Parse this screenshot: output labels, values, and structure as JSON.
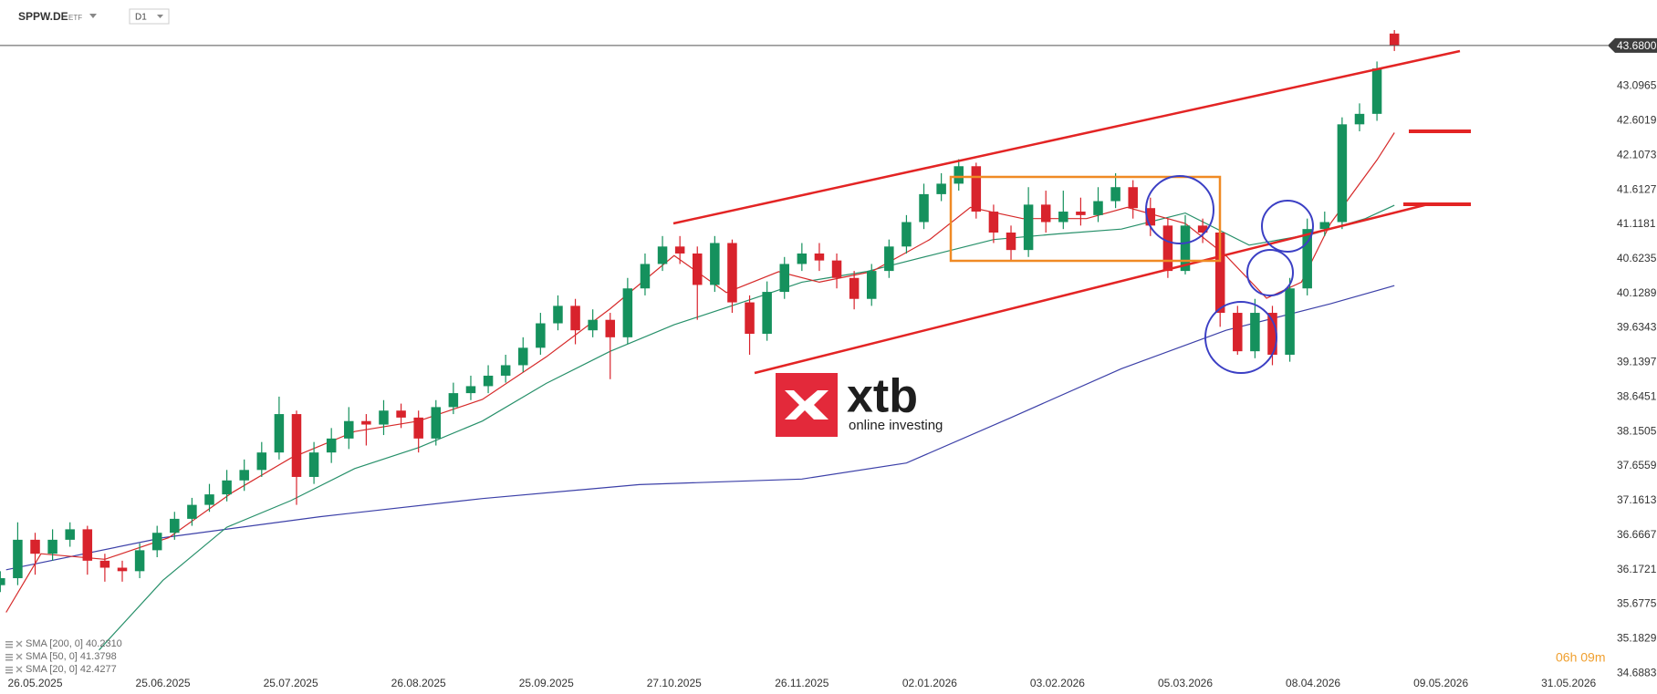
{
  "chart_data": {
    "type": "candlestick",
    "symbol": "SPPW.DE",
    "instrument_type": "ETF",
    "timeframe": "D1",
    "countdown": "06h 09m",
    "watermark": {
      "brand": "xtb",
      "tagline": "online investing"
    },
    "colors": {
      "up": "#15915d",
      "down": "#d8232c"
    },
    "x": [
      -6,
      -3,
      0,
      3,
      6,
      9,
      12,
      15,
      18,
      21,
      24,
      27,
      30,
      33,
      36,
      39,
      42,
      45,
      48,
      51,
      54,
      57,
      60,
      63,
      66,
      69,
      72,
      75,
      78,
      81,
      84,
      87,
      90,
      93,
      96,
      99,
      102,
      105,
      108,
      111,
      114,
      117,
      120,
      123,
      126,
      129,
      132,
      135,
      138,
      141,
      144,
      147,
      150,
      153,
      156,
      159,
      162,
      165,
      168,
      171,
      174,
      177,
      180,
      183,
      186,
      189,
      192,
      195,
      198,
      201,
      204,
      207,
      210,
      213,
      216,
      219,
      222,
      225,
      228,
      231,
      234
    ],
    "open": [
      35.95,
      36.05,
      36.6,
      36.4,
      36.6,
      36.75,
      36.3,
      36.2,
      36.15,
      36.45,
      36.7,
      36.9,
      37.1,
      37.25,
      37.45,
      37.6,
      37.85,
      38.4,
      37.5,
      37.85,
      38.05,
      38.3,
      38.25,
      38.45,
      38.35,
      38.05,
      38.5,
      38.7,
      38.8,
      38.95,
      39.1,
      39.35,
      39.7,
      39.95,
      39.6,
      39.75,
      39.5,
      40.2,
      40.55,
      40.8,
      40.7,
      40.25,
      40.85,
      40.0,
      39.55,
      40.15,
      40.55,
      40.7,
      40.6,
      40.35,
      40.05,
      40.45,
      40.8,
      41.15,
      41.55,
      41.7,
      41.95,
      41.3,
      41.0,
      40.75,
      41.4,
      41.15,
      41.3,
      41.25,
      41.45,
      41.65,
      41.35,
      41.1,
      40.45,
      41.1,
      41.0,
      39.85,
      39.3,
      39.85,
      39.25,
      40.2,
      41.05,
      41.15,
      42.55,
      42.7,
      43.85
    ],
    "high": [
      36.15,
      36.85,
      36.7,
      36.75,
      36.85,
      36.8,
      36.4,
      36.3,
      36.55,
      36.8,
      37.0,
      37.2,
      37.4,
      37.6,
      37.75,
      38.0,
      38.65,
      38.45,
      38.0,
      38.2,
      38.5,
      38.4,
      38.6,
      38.55,
      38.45,
      38.6,
      38.85,
      38.95,
      39.1,
      39.25,
      39.5,
      39.85,
      40.1,
      40.05,
      39.9,
      39.85,
      40.35,
      40.7,
      40.95,
      40.95,
      40.8,
      40.95,
      40.9,
      40.1,
      40.3,
      40.65,
      40.85,
      40.85,
      40.7,
      40.45,
      40.55,
      40.9,
      41.25,
      41.7,
      41.85,
      42.05,
      42.0,
      41.4,
      41.1,
      41.65,
      41.6,
      41.6,
      41.5,
      41.65,
      41.85,
      41.75,
      41.5,
      41.2,
      41.25,
      41.2,
      41.05,
      39.95,
      40.05,
      39.95,
      40.35,
      41.2,
      41.3,
      42.65,
      42.85,
      43.45,
      43.9
    ],
    "low": [
      35.85,
      35.95,
      36.1,
      36.3,
      36.5,
      36.1,
      36.0,
      36.0,
      36.05,
      36.35,
      36.6,
      36.8,
      37.0,
      37.15,
      37.3,
      37.5,
      37.75,
      37.1,
      37.4,
      37.7,
      37.9,
      37.95,
      38.1,
      38.2,
      37.85,
      37.95,
      38.4,
      38.6,
      38.7,
      38.85,
      39.0,
      39.25,
      39.6,
      39.4,
      39.5,
      38.9,
      39.4,
      40.1,
      40.45,
      40.55,
      39.75,
      40.15,
      39.85,
      39.25,
      39.45,
      40.05,
      40.45,
      40.45,
      40.2,
      39.9,
      39.95,
      40.35,
      40.7,
      41.05,
      41.45,
      41.6,
      41.2,
      40.85,
      40.6,
      40.65,
      41.0,
      41.05,
      41.1,
      41.15,
      41.35,
      41.2,
      40.95,
      40.35,
      40.4,
      40.85,
      39.65,
      39.25,
      39.2,
      39.1,
      39.15,
      40.1,
      40.95,
      41.05,
      42.45,
      42.6,
      43.6
    ],
    "close": [
      36.05,
      36.6,
      36.4,
      36.6,
      36.75,
      36.3,
      36.2,
      36.15,
      36.45,
      36.7,
      36.9,
      37.1,
      37.25,
      37.45,
      37.6,
      37.85,
      38.4,
      37.5,
      37.85,
      38.05,
      38.3,
      38.25,
      38.45,
      38.35,
      38.05,
      38.5,
      38.7,
      38.8,
      38.95,
      39.1,
      39.35,
      39.7,
      39.95,
      39.6,
      39.75,
      39.5,
      40.2,
      40.55,
      40.8,
      40.7,
      40.25,
      40.85,
      40.0,
      39.55,
      40.15,
      40.55,
      40.7,
      40.6,
      40.35,
      40.05,
      40.45,
      40.8,
      41.15,
      41.55,
      41.7,
      41.95,
      41.3,
      41.0,
      40.75,
      41.4,
      41.15,
      41.3,
      41.25,
      41.45,
      41.65,
      41.35,
      41.1,
      40.45,
      41.1,
      41.0,
      39.85,
      39.3,
      39.85,
      39.25,
      40.2,
      41.05,
      41.15,
      42.55,
      42.7,
      43.35,
      43.68
    ],
    "sma": [
      {
        "name": "SMA [200, 0] 40.2310",
        "color": "#3c40a8",
        "x": [
          -5,
          22,
          49,
          77,
          104,
          132,
          150,
          168,
          187,
          205,
          223,
          234
        ],
        "values": [
          36.17,
          36.63,
          36.93,
          37.19,
          37.39,
          37.47,
          37.7,
          38.35,
          39.05,
          39.6,
          39.98,
          40.24
        ]
      },
      {
        "name": "SMA [50, 0] 41.3798",
        "color": "#27906a",
        "x": [
          11,
          22,
          33,
          44,
          55,
          66,
          77,
          88,
          99,
          110,
          121,
          132,
          143,
          154,
          165,
          176,
          187,
          198,
          209,
          220,
          229,
          234
        ],
        "values": [
          35.02,
          36.02,
          36.78,
          37.16,
          37.62,
          37.92,
          38.3,
          38.84,
          39.3,
          39.68,
          39.98,
          40.29,
          40.44,
          40.67,
          40.9,
          40.98,
          41.05,
          41.28,
          40.82,
          40.98,
          41.2,
          41.39
        ]
      },
      {
        "name": "SMA [20, 0] 42.4277",
        "color": "#d62a2a",
        "x": [
          -5,
          1,
          12,
          23,
          34,
          44,
          55,
          66,
          77,
          88,
          99,
          110,
          119,
          128,
          135,
          144,
          154,
          161,
          170,
          181,
          188,
          198,
          205,
          212,
          218,
          223,
          231,
          234
        ],
        "values": [
          35.56,
          36.4,
          36.32,
          36.63,
          37.28,
          37.77,
          38.15,
          38.3,
          38.61,
          39.22,
          39.91,
          40.67,
          40.14,
          40.44,
          40.29,
          40.44,
          40.9,
          41.36,
          41.2,
          41.2,
          41.36,
          41.13,
          40.67,
          40.06,
          40.29,
          41.13,
          42.04,
          42.43
        ]
      }
    ],
    "last_price": {
      "value": 43.68,
      "label": "43.6800"
    },
    "xlim": [
      -6.05,
      270.1
    ],
    "xticks": [
      {
        "value": 0,
        "label": "26.05.2025"
      },
      {
        "value": 22,
        "label": "25.06.2025"
      },
      {
        "value": 44,
        "label": "25.07.2025"
      },
      {
        "value": 66,
        "label": "26.08.2025"
      },
      {
        "value": 88,
        "label": "25.09.2025"
      },
      {
        "value": 110,
        "label": "27.10.2025"
      },
      {
        "value": 132,
        "label": "26.11.2025"
      },
      {
        "value": 154,
        "label": "02.01.2026"
      },
      {
        "value": 176,
        "label": "03.02.2026"
      },
      {
        "value": 198,
        "label": "05.03.2026"
      },
      {
        "value": 220,
        "label": "08.04.2026"
      },
      {
        "value": 242,
        "label": "09.05.2026"
      },
      {
        "value": 264,
        "label": "31.05.2026"
      }
    ],
    "ylim": [
      34.6,
      44.2
    ],
    "yticks": [
      34.6883,
      35.1829,
      35.6775,
      36.1721,
      36.6667,
      37.1613,
      37.6559,
      38.1505,
      38.6451,
      39.1397,
      39.6343,
      40.1289,
      40.6235,
      41.1181,
      41.6127,
      42.1073,
      42.6019,
      43.0965
    ],
    "grid": false
  }
}
